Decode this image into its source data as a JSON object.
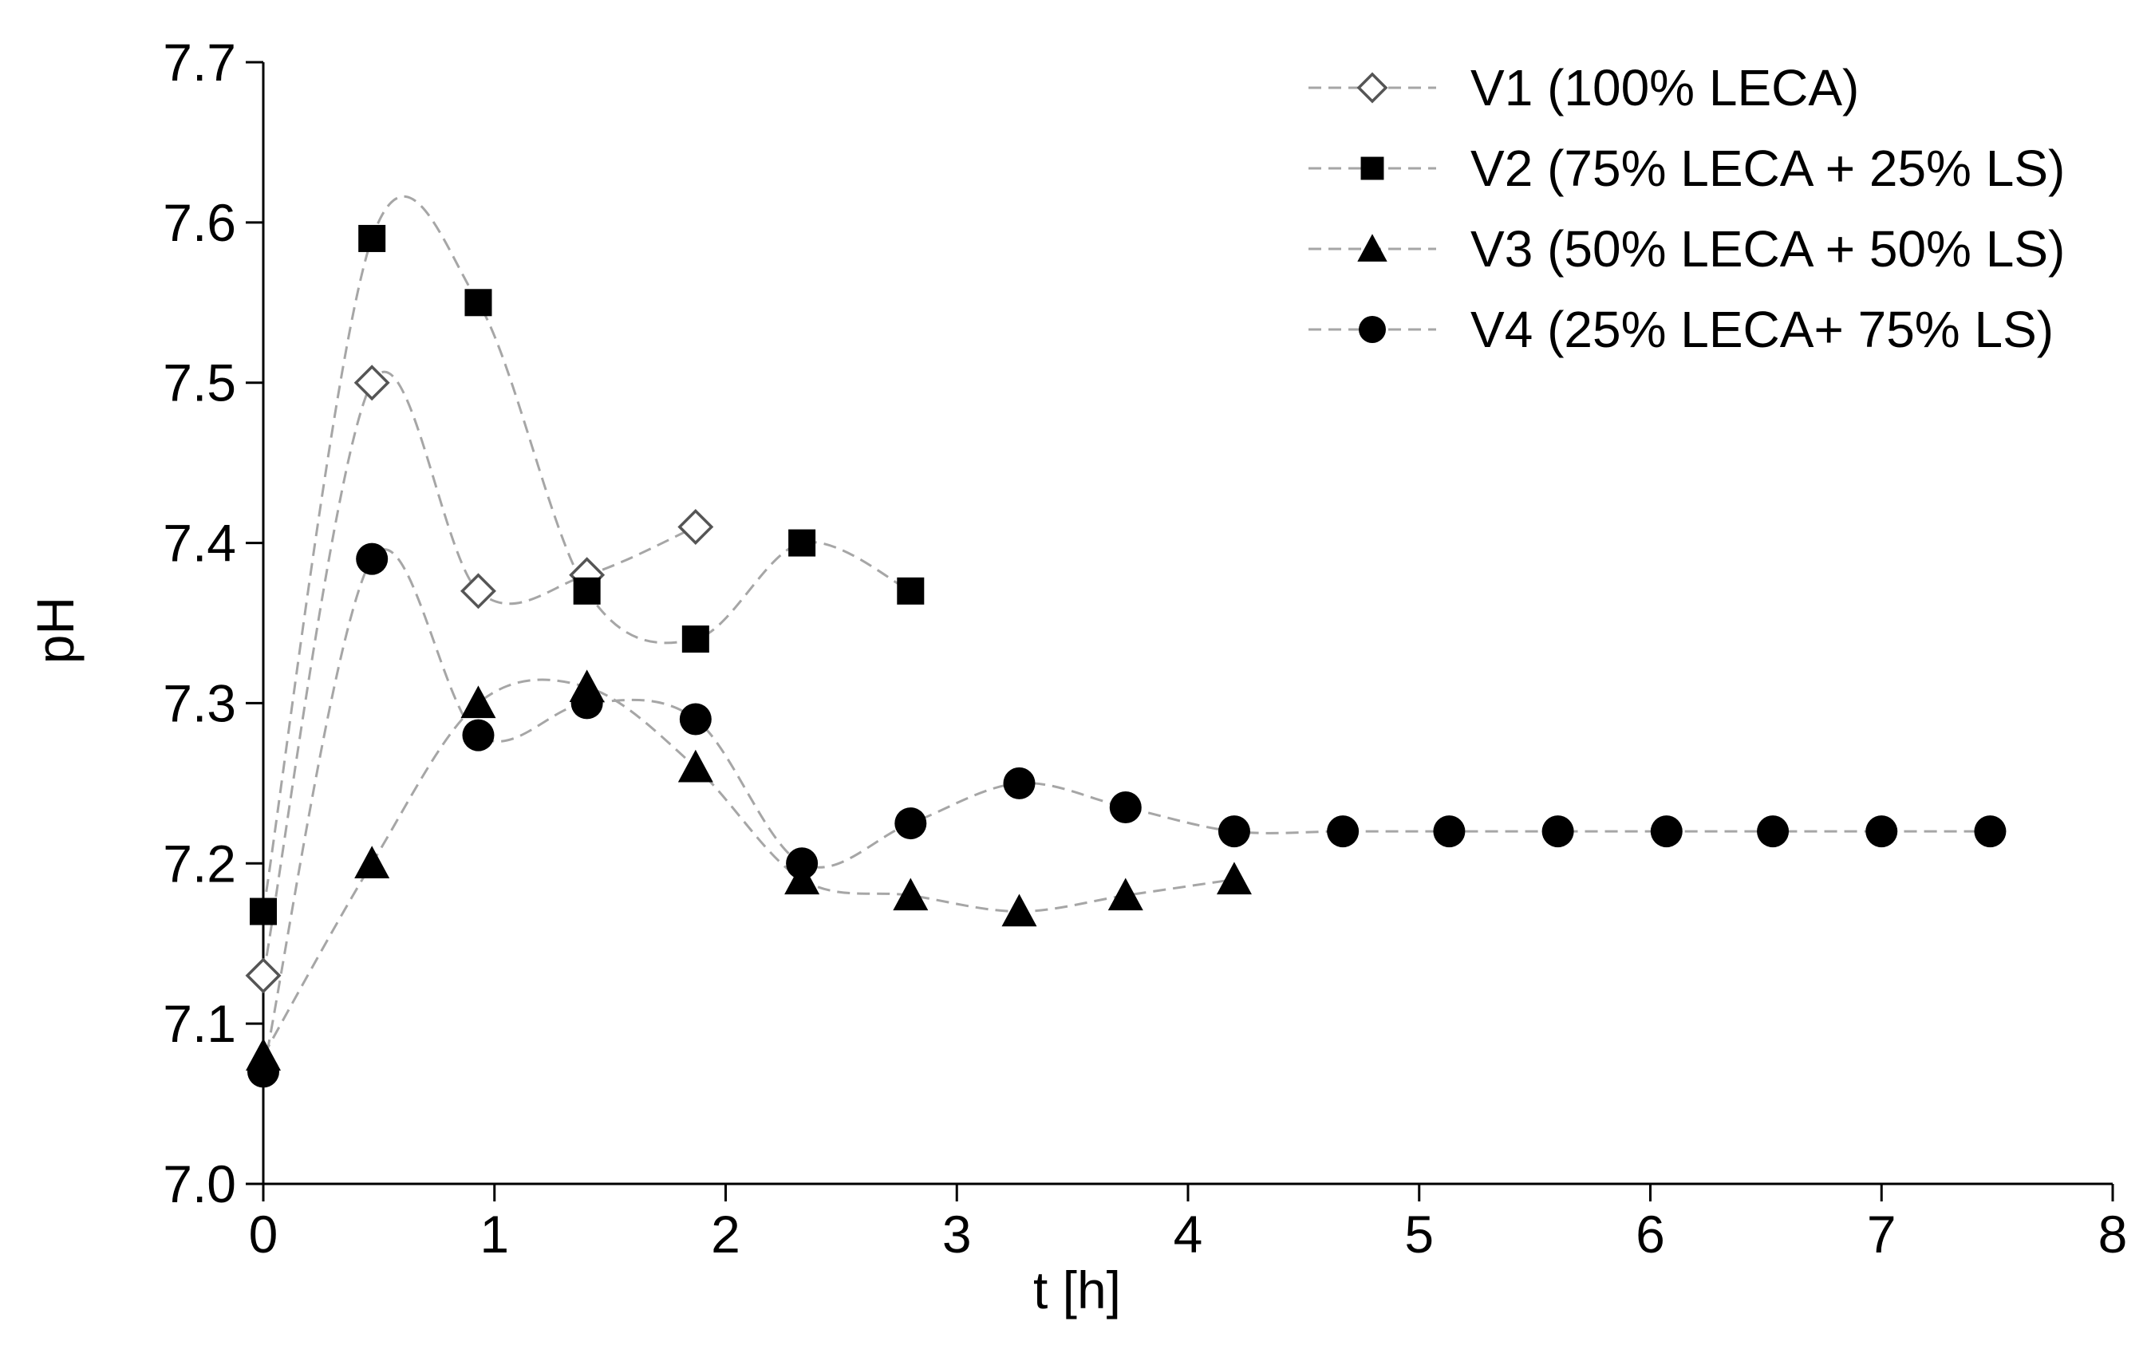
{
  "chart_data": {
    "type": "line",
    "title": "",
    "xlabel": "t [h]",
    "ylabel": "pH",
    "xlim": [
      0,
      8
    ],
    "ylim": [
      7.0,
      7.7
    ],
    "x_ticks": [
      "0",
      "1",
      "2",
      "3",
      "4",
      "5",
      "6",
      "7",
      "8"
    ],
    "y_ticks": [
      "7.0",
      "7.1",
      "7.2",
      "7.3",
      "7.4",
      "7.5",
      "7.6",
      "7.7"
    ],
    "grid": false,
    "legend_position": "top-right",
    "line_style": "dashed smoothed",
    "line_color": "#a6a6a6",
    "series": [
      {
        "name": "V1 (100% LECA)",
        "marker": "diamond-open",
        "x": [
          0,
          0.47,
          0.93,
          1.4,
          1.87
        ],
        "y": [
          7.13,
          7.5,
          7.37,
          7.38,
          7.41
        ]
      },
      {
        "name": "V2 (75% LECA + 25% LS)",
        "marker": "square",
        "x": [
          0,
          0.47,
          0.93,
          1.4,
          1.87,
          2.33,
          2.8
        ],
        "y": [
          7.17,
          7.59,
          7.55,
          7.37,
          7.34,
          7.4,
          7.37
        ]
      },
      {
        "name": "V3 (50% LECA + 50% LS)",
        "marker": "triangle",
        "x": [
          0,
          0.47,
          0.93,
          1.4,
          1.87,
          2.33,
          2.8,
          3.27,
          3.73,
          4.2
        ],
        "y": [
          7.08,
          7.2,
          7.3,
          7.31,
          7.26,
          7.19,
          7.18,
          7.17,
          7.18,
          7.19
        ]
      },
      {
        "name": "V4 (25% LECA+ 75% LS)",
        "marker": "circle",
        "x": [
          0,
          0.47,
          0.93,
          1.4,
          1.87,
          2.33,
          2.8,
          3.27,
          3.73,
          4.2,
          4.67,
          5.13,
          5.6,
          6.07,
          6.53,
          7.0,
          7.47
        ],
        "y": [
          7.07,
          7.39,
          7.28,
          7.3,
          7.29,
          7.2,
          7.225,
          7.25,
          7.235,
          7.22,
          7.22,
          7.22,
          7.22,
          7.22,
          7.22,
          7.22,
          7.22
        ]
      }
    ]
  }
}
